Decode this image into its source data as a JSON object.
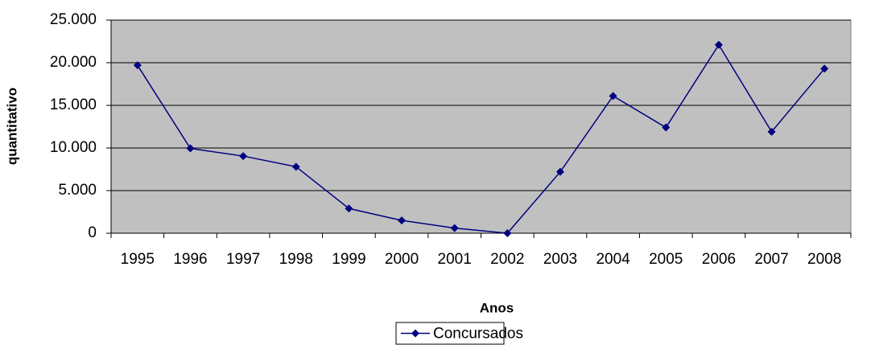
{
  "chart_data": {
    "type": "line",
    "x_label": "Anos",
    "y_label": "quantitativo",
    "categories": [
      "1995",
      "1996",
      "1997",
      "1998",
      "1999",
      "2000",
      "2001",
      "2002",
      "2003",
      "2004",
      "2005",
      "2006",
      "2007",
      "2008"
    ],
    "series": [
      {
        "name": "Concursados",
        "color": "#000080",
        "values": [
          19700,
          9950,
          9050,
          7800,
          2900,
          1500,
          600,
          0,
          7200,
          16100,
          12400,
          22100,
          11900,
          19300
        ]
      }
    ],
    "ylim": [
      0,
      25000
    ],
    "yticks": [
      0,
      {
        "value": 5000,
        "label": "5.000"
      },
      {
        "value": 10000,
        "label": "10.000"
      },
      {
        "value": 15000,
        "label": "15.000"
      },
      {
        "value": 20000,
        "label": "20.000"
      },
      {
        "value": 25000,
        "label": "25.000"
      }
    ],
    "grid": true,
    "legend": "bottom",
    "plot_background": "#c0c0c0"
  }
}
